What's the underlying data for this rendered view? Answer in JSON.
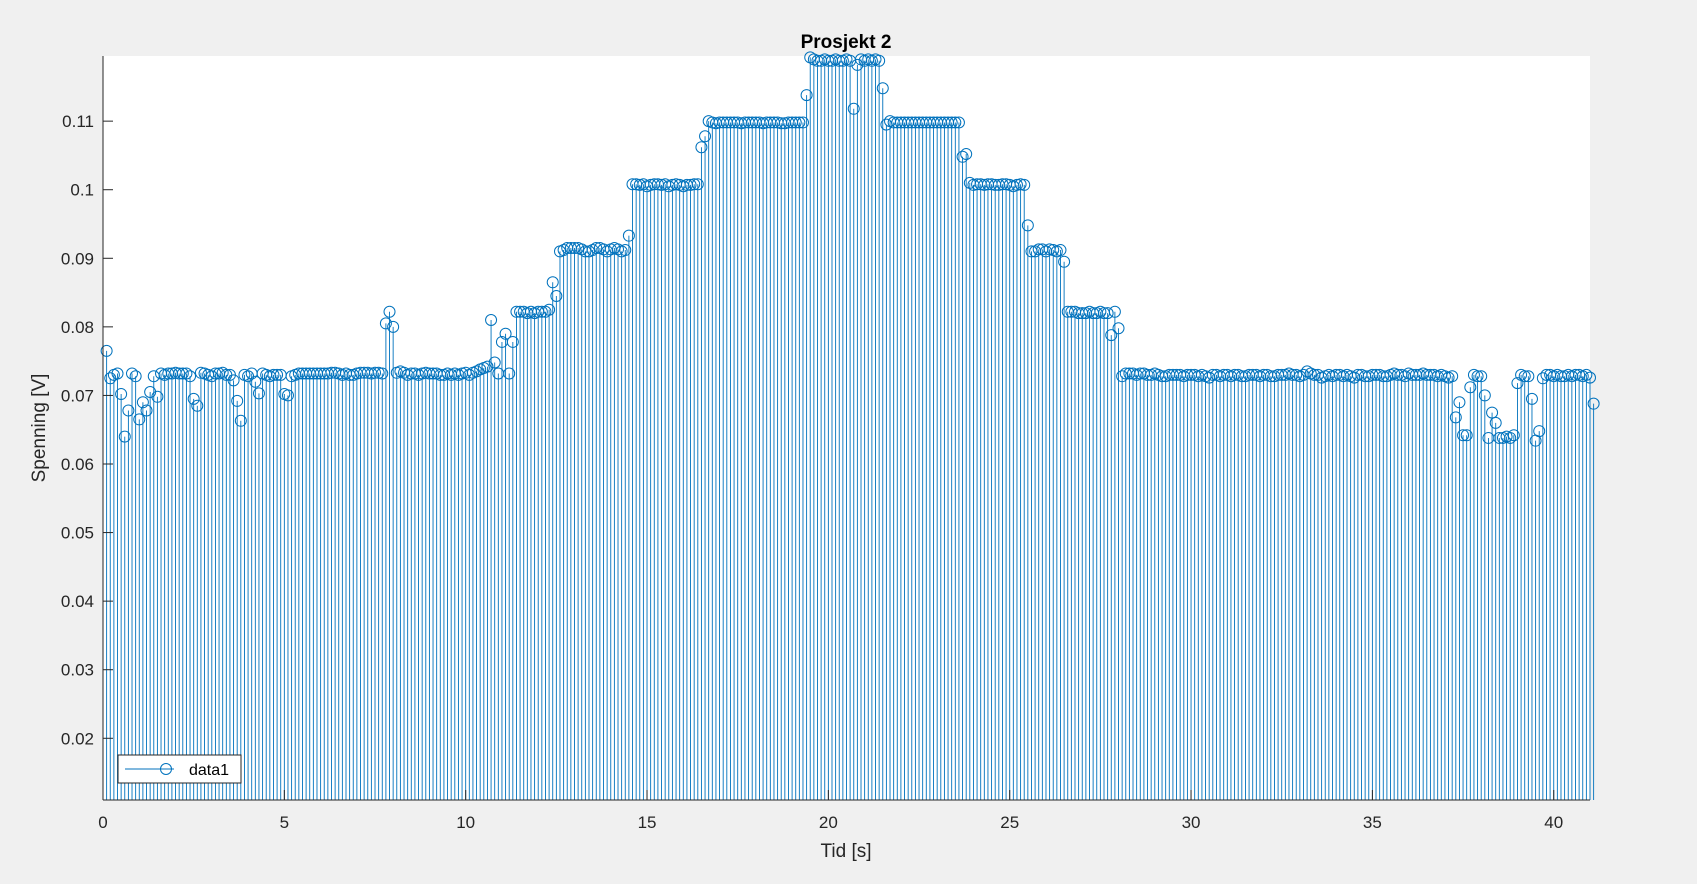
{
  "chart_data": {
    "type": "stem",
    "title": "Prosjekt 2",
    "xlabel": "Tid [s]",
    "ylabel": "Spenning [V]",
    "xlim": [
      0,
      41
    ],
    "ylim": [
      0.011,
      0.1195
    ],
    "xticks": [
      0,
      5,
      10,
      15,
      20,
      25,
      30,
      35,
      40
    ],
    "xtick_labels": [
      "0",
      "5",
      "10",
      "15",
      "20",
      "25",
      "30",
      "35",
      "40"
    ],
    "yticks": [
      0.02,
      0.03,
      0.04,
      0.05,
      0.06,
      0.07,
      0.08,
      0.09,
      0.1,
      0.11
    ],
    "ytick_labels": [
      "0.02",
      "0.03",
      "0.04",
      "0.05",
      "0.06",
      "0.07",
      "0.08",
      "0.09",
      "0.1",
      "0.11"
    ],
    "grid": false,
    "legend": {
      "position": "bottom-left",
      "entries": [
        "data1"
      ]
    },
    "series": [
      {
        "name": "data1",
        "color": "#0072bd",
        "marker": "circle",
        "x_start": 0.1,
        "x_step": 0.1,
        "values": [
          0.0765,
          0.0725,
          0.073,
          0.0732,
          0.0702,
          0.064,
          0.0678,
          0.0732,
          0.0728,
          0.0665,
          0.069,
          0.0678,
          0.0705,
          0.0728,
          0.0698,
          0.0732,
          0.073,
          0.0732,
          0.0732,
          0.0733,
          0.0732,
          0.0732,
          0.0732,
          0.0728,
          0.0695,
          0.0685,
          0.0733,
          0.0732,
          0.073,
          0.0728,
          0.0732,
          0.0732,
          0.0733,
          0.073,
          0.073,
          0.0722,
          0.0692,
          0.0663,
          0.073,
          0.0728,
          0.0732,
          0.072,
          0.0703,
          0.0732,
          0.073,
          0.0728,
          0.073,
          0.073,
          0.073,
          0.0702,
          0.07,
          0.0728,
          0.073,
          0.0732,
          0.0732,
          0.0732,
          0.0732,
          0.0732,
          0.0732,
          0.0732,
          0.0732,
          0.0732,
          0.0733,
          0.0733,
          0.0732,
          0.073,
          0.0732,
          0.073,
          0.073,
          0.0732,
          0.0733,
          0.0733,
          0.0733,
          0.0732,
          0.0733,
          0.0733,
          0.0732,
          0.0805,
          0.0822,
          0.08,
          0.0733,
          0.0735,
          0.0733,
          0.073,
          0.0732,
          0.0732,
          0.073,
          0.0732,
          0.0733,
          0.0732,
          0.0732,
          0.0732,
          0.073,
          0.073,
          0.0732,
          0.073,
          0.0732,
          0.073,
          0.0732,
          0.0733,
          0.073,
          0.0733,
          0.0735,
          0.0738,
          0.074,
          0.0742,
          0.081,
          0.0748,
          0.0732,
          0.0778,
          0.079,
          0.0732,
          0.0778,
          0.0822,
          0.0822,
          0.0822,
          0.082,
          0.0822,
          0.082,
          0.0822,
          0.0822,
          0.0822,
          0.0825,
          0.0865,
          0.0845,
          0.091,
          0.0912,
          0.0915,
          0.0915,
          0.0915,
          0.0915,
          0.0913,
          0.091,
          0.091,
          0.0912,
          0.0915,
          0.0915,
          0.0913,
          0.091,
          0.0913,
          0.0915,
          0.0913,
          0.091,
          0.0912,
          0.0933,
          0.1008,
          0.1008,
          0.1007,
          0.1008,
          0.1005,
          0.1007,
          0.1008,
          0.1008,
          0.1007,
          0.1008,
          0.1005,
          0.1007,
          0.1008,
          0.1007,
          0.1005,
          0.1007,
          0.1007,
          0.1008,
          0.1008,
          0.1062,
          0.1078,
          0.11,
          0.1098,
          0.1097,
          0.1098,
          0.1098,
          0.1098,
          0.1098,
          0.1098,
          0.1098,
          0.1097,
          0.1098,
          0.1098,
          0.1098,
          0.1098,
          0.1098,
          0.1097,
          0.1098,
          0.1098,
          0.1098,
          0.1098,
          0.1097,
          0.1097,
          0.1098,
          0.1098,
          0.1098,
          0.1098,
          0.1098,
          0.1138,
          0.1193,
          0.119,
          0.1188,
          0.1188,
          0.119,
          0.1188,
          0.1188,
          0.119,
          0.1188,
          0.1188,
          0.119,
          0.1188,
          0.1118,
          0.1182,
          0.119,
          0.1188,
          0.119,
          0.1188,
          0.119,
          0.1188,
          0.1148,
          0.1095,
          0.11,
          0.1098,
          0.1098,
          0.1098,
          0.1098,
          0.1098,
          0.1098,
          0.1098,
          0.1098,
          0.1098,
          0.1098,
          0.1098,
          0.1098,
          0.1098,
          0.1098,
          0.1098,
          0.1098,
          0.1098,
          0.1098,
          0.1098,
          0.1048,
          0.1052,
          0.101,
          0.1007,
          0.1008,
          0.1008,
          0.1007,
          0.1008,
          0.1008,
          0.1007,
          0.1007,
          0.1008,
          0.1008,
          0.1007,
          0.1005,
          0.1007,
          0.1008,
          0.1007,
          0.0948,
          0.091,
          0.091,
          0.0913,
          0.0913,
          0.091,
          0.0913,
          0.0912,
          0.091,
          0.0912,
          0.0895,
          0.0822,
          0.0822,
          0.0822,
          0.082,
          0.082,
          0.082,
          0.0822,
          0.082,
          0.082,
          0.0822,
          0.082,
          0.082,
          0.0788,
          0.0822,
          0.0798,
          0.0728,
          0.0732,
          0.0732,
          0.0732,
          0.073,
          0.0732,
          0.0732,
          0.073,
          0.073,
          0.0732,
          0.073,
          0.0728,
          0.0728,
          0.073,
          0.073,
          0.073,
          0.073,
          0.0728,
          0.073,
          0.073,
          0.073,
          0.0728,
          0.073,
          0.0728,
          0.0726,
          0.073,
          0.073,
          0.0728,
          0.073,
          0.073,
          0.0728,
          0.073,
          0.073,
          0.0728,
          0.0728,
          0.073,
          0.073,
          0.073,
          0.0728,
          0.073,
          0.073,
          0.0728,
          0.0728,
          0.073,
          0.073,
          0.073,
          0.0732,
          0.073,
          0.073,
          0.0728,
          0.073,
          0.0735,
          0.0732,
          0.073,
          0.073,
          0.0726,
          0.0728,
          0.073,
          0.0728,
          0.073,
          0.073,
          0.0728,
          0.073,
          0.0728,
          0.0726,
          0.073,
          0.073,
          0.0728,
          0.0728,
          0.073,
          0.073,
          0.073,
          0.0728,
          0.0728,
          0.073,
          0.0732,
          0.073,
          0.073,
          0.0728,
          0.0732,
          0.073,
          0.073,
          0.073,
          0.0732,
          0.073,
          0.073,
          0.073,
          0.0728,
          0.073,
          0.0728,
          0.0726,
          0.0728,
          0.0668,
          0.069,
          0.0642,
          0.0642,
          0.0712,
          0.073,
          0.0728,
          0.0728,
          0.07,
          0.0638,
          0.0675,
          0.066,
          0.0638,
          0.0638,
          0.064,
          0.0638,
          0.0642,
          0.0718,
          0.073,
          0.0728,
          0.0728,
          0.0695,
          0.0634,
          0.0648,
          0.0725,
          0.073,
          0.073,
          0.0728,
          0.073,
          0.0728,
          0.0728,
          0.073,
          0.0728,
          0.073,
          0.073,
          0.0728,
          0.073,
          0.0726,
          0.0688
        ]
      }
    ]
  }
}
